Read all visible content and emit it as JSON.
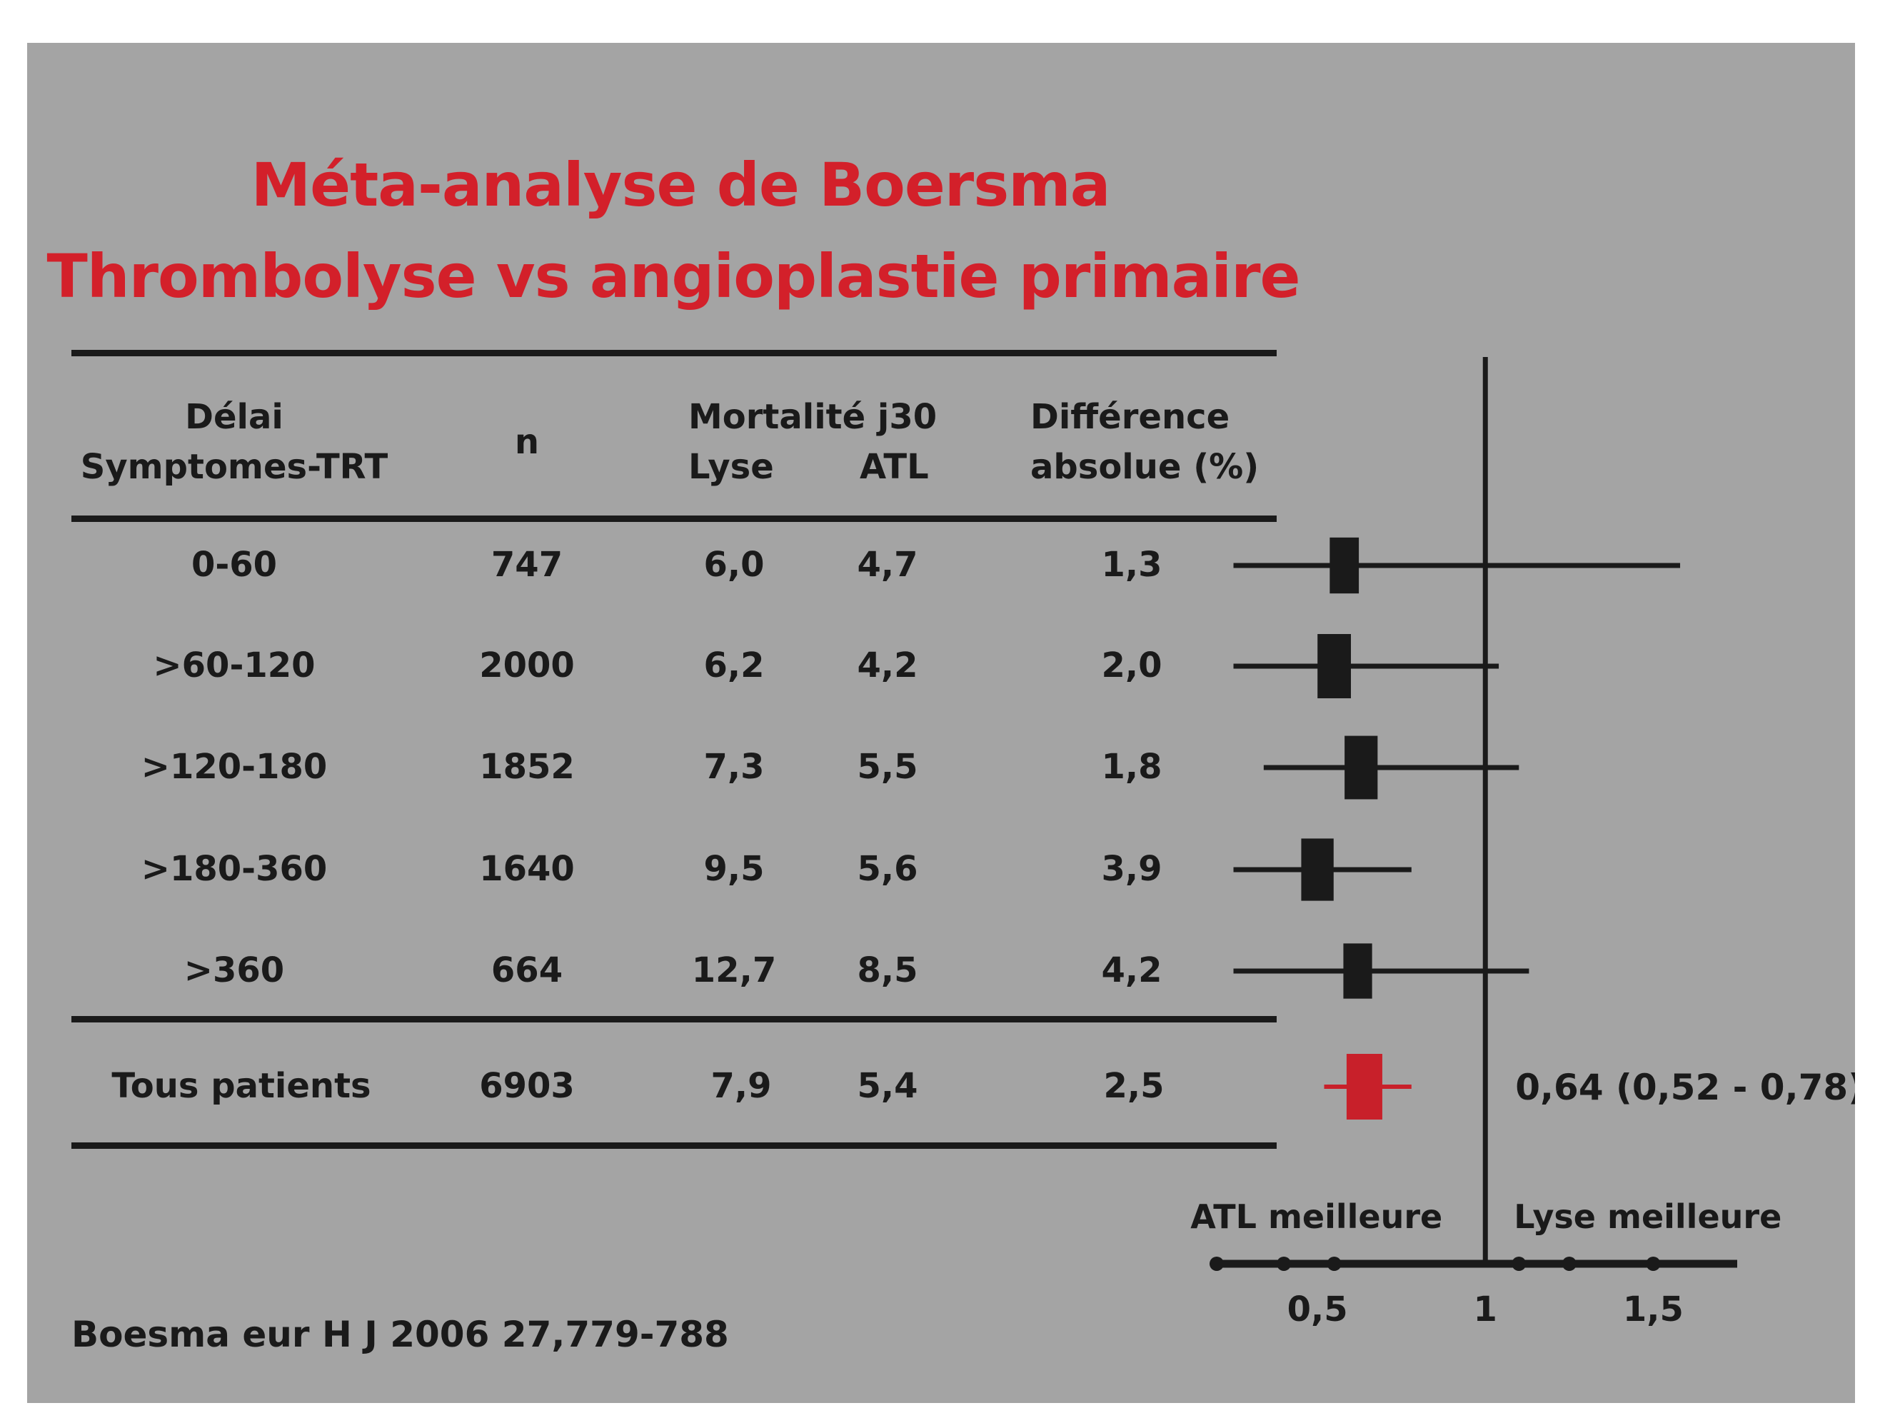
{
  "title": {
    "line1": "Méta-analyse de Boersma",
    "line2": "Thrombolyse vs angioplastie primaire"
  },
  "table": {
    "headers": {
      "delay_line1": "Délai",
      "delay_line2": "Symptomes-TRT",
      "n": "n",
      "mortality": "Mortalité j30",
      "lysis": "Lyse",
      "atl": "ATL",
      "difference_line1": "Différence",
      "difference_line2": "absolue (%)"
    },
    "rows": [
      {
        "delay": "0-60",
        "n": "747",
        "lysis": "6,0",
        "atl": "4,7",
        "difference": "1,3"
      },
      {
        "delay": ">60-120",
        "n": "2000",
        "lysis": "6,2",
        "atl": "4,2",
        "difference": "2,0"
      },
      {
        "delay": ">120-180",
        "n": "1852",
        "lysis": "7,3",
        "atl": "5,5",
        "difference": "1,8"
      },
      {
        "delay": ">180-360",
        "n": "1640",
        "lysis": "9,5",
        "atl": "5,6",
        "difference": "3,9"
      },
      {
        "delay": ">360",
        "n": "664",
        "lysis": "12,7",
        "atl": "8,5",
        "difference": "4,2"
      }
    ],
    "total": {
      "delay": "Tous patients",
      "n": "6903",
      "lysis": "7,9",
      "atl": "5,4",
      "difference": "2,5"
    }
  },
  "citation": "Boesma eur H J 2006 27,779-788",
  "chart_data": {
    "type": "forest",
    "x_domain": [
      0.2,
      1.75
    ],
    "reference_line": 1,
    "x_ticks": [
      0.2,
      0.4,
      0.55,
      1.1,
      1.25,
      1.5
    ],
    "x_tick_labels": [
      {
        "value": 0.5,
        "label": "0,5"
      },
      {
        "value": 1,
        "label": "1"
      },
      {
        "value": 1.5,
        "label": "1,5"
      }
    ],
    "left_label": "ATL meilleure",
    "right_label": "Lyse meilleure",
    "total_estimate_label": "0,64 (0,52 - 0,78)",
    "marker_color": "#1a1a1a",
    "total_color": "#c8202a",
    "studies": [
      {
        "estimate": 0.58,
        "ci_low": 0.25,
        "ci_high": 1.58,
        "weight": 747
      },
      {
        "estimate": 0.55,
        "ci_low": 0.25,
        "ci_high": 1.04,
        "weight": 2000
      },
      {
        "estimate": 0.63,
        "ci_low": 0.34,
        "ci_high": 1.1,
        "weight": 1852
      },
      {
        "estimate": 0.5,
        "ci_low": 0.25,
        "ci_high": 0.78,
        "weight": 1640
      },
      {
        "estimate": 0.62,
        "ci_low": 0.25,
        "ci_high": 1.13,
        "weight": 664
      }
    ],
    "total": {
      "estimate": 0.64,
      "ci_low": 0.52,
      "ci_high": 0.78
    }
  }
}
